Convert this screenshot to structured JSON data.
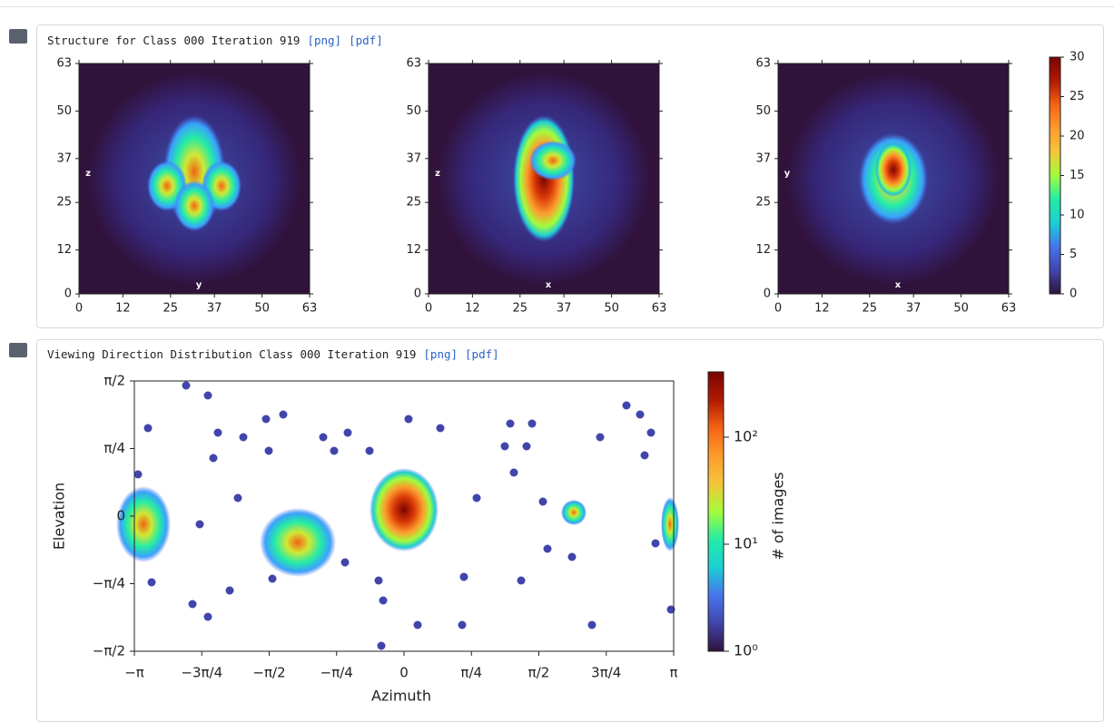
{
  "panels": [
    {
      "title": "Structure for Class 000 Iteration 919",
      "links": [
        "[png]",
        "[pdf]"
      ],
      "plots": [
        {
          "xlabel": "y",
          "ylabel": "z"
        },
        {
          "xlabel": "x",
          "ylabel": "z"
        },
        {
          "xlabel": "x",
          "ylabel": "y"
        }
      ],
      "ticks": [
        0,
        12,
        25,
        37,
        50,
        63
      ],
      "colorbar_ticks": [
        0,
        5,
        10,
        15,
        20,
        25,
        30
      ]
    },
    {
      "title": "Viewing Direction Distribution Class 000 Iteration 919",
      "links": [
        "[png]",
        "[pdf]"
      ],
      "xlabel": "Azimuth",
      "ylabel": "Elevation",
      "xticks": [
        "−π",
        "−3π/4",
        "−π/2",
        "−π/4",
        "0",
        "π/4",
        "π/2",
        "3π/4",
        "π"
      ],
      "yticks": [
        "π/2",
        "π/4",
        "0",
        "−π/4",
        "−π/2"
      ],
      "colorbar_label": "# of images",
      "colorbar_ticks": [
        "10²",
        "10¹",
        "10⁰"
      ]
    }
  ]
}
